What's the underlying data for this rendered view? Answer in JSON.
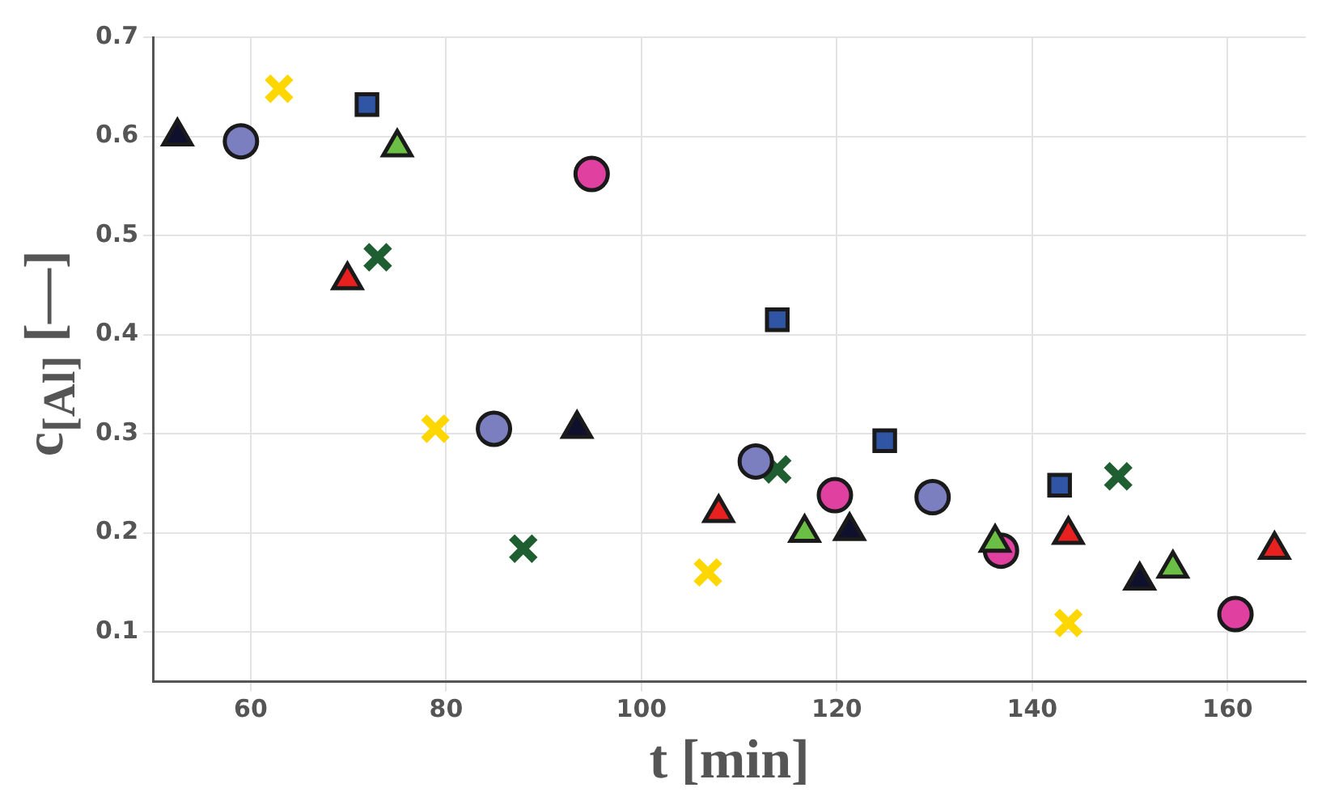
{
  "chart_data": {
    "type": "scatter",
    "xlabel": "t [min]",
    "ylabel": "c$_{[Al]}$ [—]",
    "xlim": [
      50,
      168
    ],
    "ylim": [
      0.05,
      0.7
    ],
    "xticks": [
      60,
      80,
      100,
      120,
      140,
      160
    ],
    "yticks": [
      0.1,
      0.2,
      0.3,
      0.4,
      0.5,
      0.6,
      0.7
    ],
    "grid": true,
    "legend": false,
    "series": [
      {
        "color": "#0f0f2e",
        "marker": "triangle",
        "x": [
          52.5,
          93.4,
          121.3,
          151
        ],
        "values": [
          0.6,
          0.305,
          0.202,
          0.152
        ]
      },
      {
        "color": "#7b7fc0",
        "marker": "circle",
        "x": [
          59,
          84.9,
          111.7,
          129.8
        ],
        "values": [
          0.595,
          0.305,
          0.272,
          0.236
        ]
      },
      {
        "color": "#ffd700",
        "marker": "cross",
        "x": [
          62.9,
          78.9,
          106.8,
          143.7
        ],
        "values": [
          0.648,
          0.305,
          0.16,
          0.109
        ]
      },
      {
        "color": "#2f55a4",
        "marker": "square",
        "x": [
          71.9,
          113.9,
          124.9,
          142.8
        ],
        "values": [
          0.632,
          0.415,
          0.293,
          0.248
        ]
      },
      {
        "color": "#6cbf45",
        "marker": "triangle",
        "x": [
          75,
          116.7,
          136.2,
          154.4
        ],
        "values": [
          0.589,
          0.2,
          0.19,
          0.164
        ]
      },
      {
        "color": "#e040a0",
        "marker": "circle",
        "x": [
          94.9,
          119.8,
          136.8,
          160.8
        ],
        "values": [
          0.562,
          0.238,
          0.182,
          0.118
        ]
      },
      {
        "color": "#e82020",
        "marker": "triangle",
        "x": [
          69.9,
          107.9,
          143.7,
          164.8
        ],
        "values": [
          0.455,
          0.22,
          0.198,
          0.183
        ]
      },
      {
        "color": "#1e5e30",
        "marker": "cross",
        "x": [
          73,
          87.9,
          113.9,
          148.8
        ],
        "values": [
          0.478,
          0.184,
          0.264,
          0.257
        ]
      }
    ]
  }
}
